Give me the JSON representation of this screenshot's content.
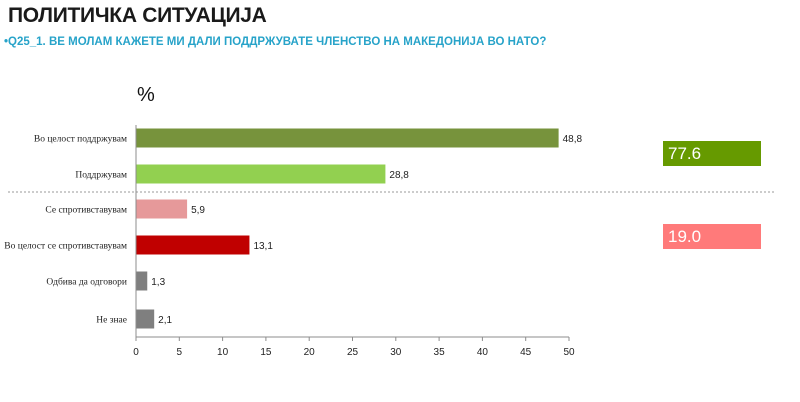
{
  "header": {
    "title": "ПОЛИТИЧКА СИТУАЦИЈА",
    "subtitle": "•Q25_1. ВЕ МОЛАМ КАЖЕТЕ МИ ДАЛИ ПОДДРЖУВАТЕ ЧЛЕНСТВО НА МАКЕДОНИЈА ВО НАТО?"
  },
  "chart_data": {
    "type": "bar",
    "orientation": "horizontal",
    "unit_label": "%",
    "categories": [
      "Во целост поддржувам",
      "Поддржувам",
      "Се спротивставувам",
      "Во целост се спротивставувам",
      "Одбива да одговори",
      "Не знае"
    ],
    "values": [
      48.8,
      28.8,
      5.9,
      13.1,
      1.3,
      2.1
    ],
    "value_labels": [
      "48,8",
      "28,8",
      "5,9",
      "13,1",
      "1,3",
      "2,1"
    ],
    "bar_colors": [
      "#77933c",
      "#92d050",
      "#e6999a",
      "#c00000",
      "#7f7f7f",
      "#7f7f7f"
    ],
    "xlim": [
      0,
      50
    ],
    "xticks": [
      0,
      5,
      10,
      15,
      20,
      25,
      30,
      35,
      40,
      45,
      50
    ],
    "grid": false,
    "summaries": [
      {
        "label": "77.6",
        "color": "#669a00"
      },
      {
        "label": "19.0",
        "color": "#ff7a7a"
      }
    ]
  }
}
